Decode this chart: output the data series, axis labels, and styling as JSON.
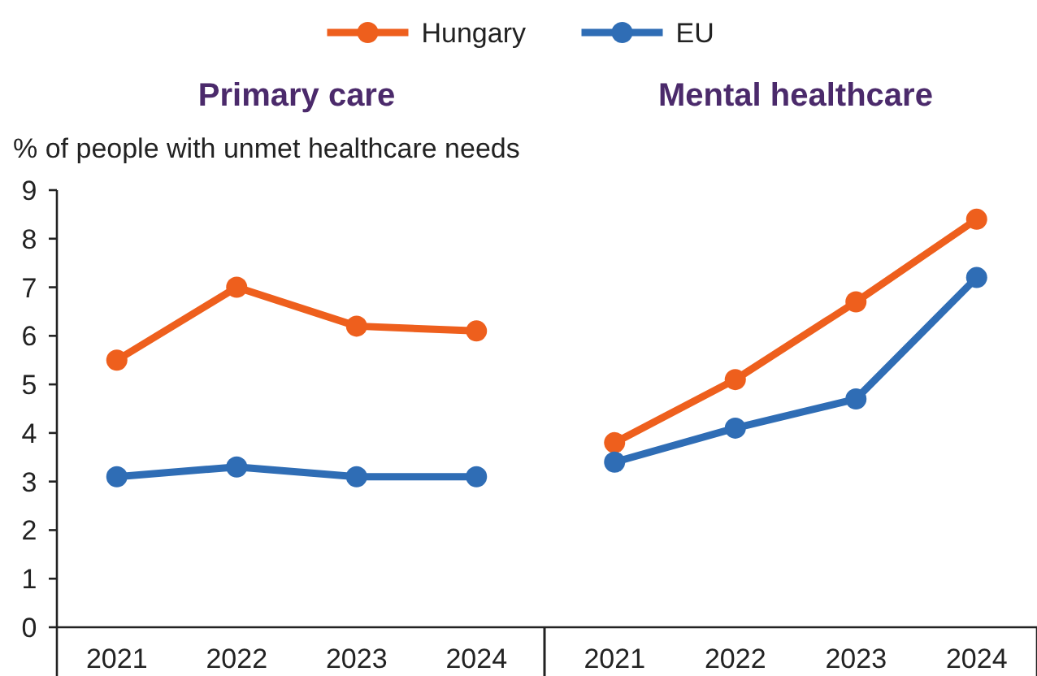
{
  "chart_data": [
    {
      "type": "line",
      "title": "Primary care",
      "ylabel": "% of people with unmet healthcare needs",
      "categories": [
        "2021",
        "2022",
        "2023",
        "2024"
      ],
      "series": [
        {
          "name": "Hungary",
          "color": "#ee5f1d",
          "values": [
            5.5,
            7.0,
            6.2,
            6.1
          ]
        },
        {
          "name": "EU",
          "color": "#2f6db5",
          "values": [
            3.1,
            3.3,
            3.1,
            3.1
          ]
        }
      ],
      "ylim": [
        0,
        9
      ],
      "yticks": [
        0,
        1,
        2,
        3,
        4,
        5,
        6,
        7,
        8,
        9
      ],
      "legend": "top",
      "marker": "circle",
      "grid": false
    },
    {
      "type": "line",
      "title": "Mental healthcare",
      "categories": [
        "2021",
        "2022",
        "2023",
        "2024"
      ],
      "series": [
        {
          "color": "#ee5f1d",
          "values": [
            3.8,
            5.1,
            6.7,
            8.4
          ]
        },
        {
          "color": "#2f6db5",
          "values": [
            3.4,
            4.1,
            4.7,
            7.2
          ]
        }
      ],
      "ylim": [
        0,
        9
      ],
      "tick_labels": "x",
      "marker": "circle",
      "grid": false
    }
  ]
}
